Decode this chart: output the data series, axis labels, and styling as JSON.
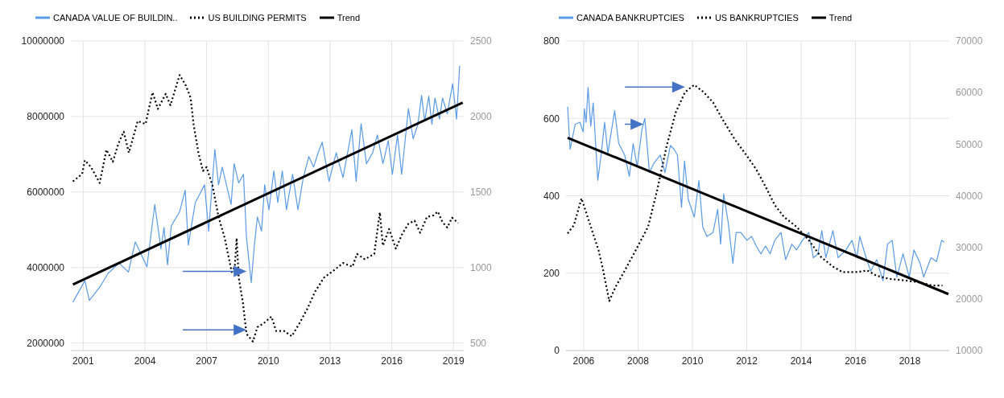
{
  "chart_data": [
    {
      "type": "line",
      "xlim": [
        2000.4,
        2019.5
      ],
      "xticks": [
        2001,
        2004,
        2007,
        2010,
        2013,
        2016,
        2019
      ],
      "ylim": [
        1800000,
        10000000
      ],
      "yticks": [
        2000000,
        4000000,
        6000000,
        8000000,
        10000000
      ],
      "y2lim": [
        450,
        2500
      ],
      "y2ticks": [
        500,
        1000,
        1500,
        2000,
        2500
      ],
      "grid": true,
      "legend": "top left",
      "series": [
        {
          "name": "CANADA VALUE OF BUILDIN..",
          "color": "#5a9be6",
          "line_style": "solid",
          "x": [
            2000.5,
            2001.08,
            2001.3,
            2001.83,
            2002.2,
            2002.74,
            2003.2,
            2003.53,
            2004.1,
            2004.48,
            2004.78,
            2004.93,
            2005.1,
            2005.28,
            2005.69,
            2005.96,
            2006.11,
            2006.45,
            2006.9,
            2007.1,
            2007.4,
            2007.58,
            2007.76,
            2008.19,
            2008.34,
            2008.56,
            2008.79,
            2008.94,
            2009.17,
            2009.32,
            2009.47,
            2009.67,
            2009.82,
            2010.03,
            2010.27,
            2010.46,
            2010.68,
            2010.88,
            2011.18,
            2011.44,
            2011.7,
            2011.97,
            2012.2,
            2012.42,
            2012.62,
            2012.95,
            2013.3,
            2013.63,
            2014.06,
            2014.27,
            2014.51,
            2014.77,
            2015.07,
            2015.3,
            2015.57,
            2015.83,
            2016.03,
            2016.28,
            2016.48,
            2016.81,
            2017.04,
            2017.27,
            2017.45,
            2017.6,
            2017.8,
            2017.95,
            2018.1,
            2018.32,
            2018.47,
            2018.7,
            2018.96,
            2019.15,
            2019.3
          ],
          "values": [
            3080000,
            3650000,
            3130000,
            3500000,
            3840000,
            4120000,
            3880000,
            4680000,
            4020000,
            5670000,
            4490000,
            5060000,
            4070000,
            5100000,
            5480000,
            6050000,
            4590000,
            5720000,
            6190000,
            4960000,
            7130000,
            6190000,
            6660000,
            5670000,
            6750000,
            6240000,
            6470000,
            4780000,
            3600000,
            4590000,
            5340000,
            4960000,
            6190000,
            5530000,
            6560000,
            5720000,
            6560000,
            5530000,
            6470000,
            5530000,
            6380000,
            6940000,
            6660000,
            7040000,
            7320000,
            6280000,
            7040000,
            6380000,
            7650000,
            6280000,
            7810000,
            6750000,
            7040000,
            7510000,
            6750000,
            7360000,
            6470000,
            7510000,
            6470000,
            8210000,
            7410000,
            7790000,
            8560000,
            7880000,
            8540000,
            7790000,
            8490000,
            7930000,
            8490000,
            8070000,
            8870000,
            7930000,
            9340000
          ]
        },
        {
          "name": "US BUILDING PERMITS",
          "color": "#000000",
          "line_style": "dotted",
          "axis": "y2",
          "x": [
            2000.5,
            2000.95,
            2001.08,
            2001.38,
            2001.8,
            2002.13,
            2002.44,
            2002.71,
            2002.97,
            2003.22,
            2003.65,
            2004.03,
            2004.37,
            2004.63,
            2005.01,
            2005.24,
            2005.69,
            2005.99,
            2006.22,
            2006.37,
            2006.6,
            2006.82,
            2007.0,
            2007.28,
            2007.58,
            2007.88,
            2008.22,
            2008.37,
            2008.46,
            2008.56,
            2008.76,
            2008.94,
            2009.25,
            2009.47,
            2009.77,
            2010.15,
            2010.38,
            2010.76,
            2011.14,
            2011.51,
            2011.89,
            2012.27,
            2012.72,
            2013.18,
            2013.63,
            2014.09,
            2014.31,
            2014.69,
            2015.15,
            2015.42,
            2015.57,
            2015.87,
            2016.2,
            2016.5,
            2016.81,
            2017.11,
            2017.38,
            2017.71,
            2018.02,
            2018.24,
            2018.47,
            2018.7,
            2018.93,
            2019.23
          ],
          "values": [
            1570,
            1620,
            1710,
            1665,
            1560,
            1780,
            1700,
            1820,
            1900,
            1760,
            1970,
            1950,
            2160,
            2050,
            2150,
            2075,
            2275,
            2205,
            2125,
            1945,
            1760,
            1640,
            1665,
            1545,
            1335,
            1195,
            970,
            1005,
            1195,
            935,
            770,
            560,
            510,
            605,
            630,
            675,
            580,
            580,
            545,
            630,
            725,
            840,
            935,
            980,
            1030,
            1005,
            1090,
            1055,
            1090,
            1365,
            1145,
            1255,
            1125,
            1220,
            1290,
            1310,
            1230,
            1335,
            1345,
            1370,
            1300,
            1265,
            1330,
            1295
          ]
        },
        {
          "name": "Trend",
          "color": "#000000",
          "line_style": "solid",
          "x": [
            2000.5,
            2019.45
          ],
          "values": [
            3550000,
            8370000
          ]
        }
      ]
    },
    {
      "type": "line",
      "xlim": [
        2005.35,
        2019.45
      ],
      "xticks": [
        2006,
        2008,
        2010,
        2012,
        2014,
        2016,
        2018
      ],
      "ylim": [
        0,
        800
      ],
      "yticks": [
        0,
        200,
        400,
        600,
        800
      ],
      "y2lim": [
        10000,
        70000
      ],
      "y2ticks": [
        10000,
        20000,
        30000,
        40000,
        50000,
        60000,
        70000
      ],
      "grid": true,
      "legend": "top left",
      "series": [
        {
          "name": "CANADA BANKRUPTCIES",
          "color": "#5a9be6",
          "line_style": "solid",
          "x": [
            2005.41,
            2005.5,
            2005.69,
            2005.86,
            2005.98,
            2006.03,
            2006.09,
            2006.16,
            2006.26,
            2006.35,
            2006.52,
            2006.64,
            2006.77,
            2006.89,
            2007.14,
            2007.29,
            2007.51,
            2007.68,
            2007.82,
            2007.97,
            2008.14,
            2008.25,
            2008.42,
            2008.59,
            2008.82,
            2008.99,
            2009.19,
            2009.33,
            2009.45,
            2009.6,
            2009.71,
            2009.85,
            2010.07,
            2010.24,
            2010.38,
            2010.53,
            2010.76,
            2010.93,
            2011.04,
            2011.15,
            2011.32,
            2011.49,
            2011.61,
            2011.78,
            2012.01,
            2012.18,
            2012.35,
            2012.52,
            2012.69,
            2012.86,
            2013.03,
            2013.26,
            2013.43,
            2013.66,
            2013.83,
            2014.05,
            2014.28,
            2014.45,
            2014.62,
            2014.76,
            2014.91,
            2015.17,
            2015.36,
            2015.65,
            2015.87,
            2016.05,
            2016.16,
            2016.39,
            2016.56,
            2016.78,
            2017.01,
            2017.18,
            2017.35,
            2017.52,
            2017.75,
            2017.98,
            2018.15,
            2018.38,
            2018.51,
            2018.78,
            2018.98,
            2019.17,
            2019.26
          ],
          "values": [
            630,
            520,
            585,
            590,
            565,
            625,
            590,
            680,
            580,
            640,
            440,
            505,
            590,
            510,
            620,
            535,
            505,
            450,
            535,
            475,
            570,
            600,
            460,
            485,
            505,
            460,
            530,
            520,
            505,
            370,
            490,
            390,
            345,
            440,
            320,
            295,
            305,
            365,
            275,
            405,
            330,
            225,
            305,
            305,
            285,
            295,
            270,
            250,
            270,
            250,
            285,
            305,
            235,
            275,
            260,
            285,
            305,
            240,
            250,
            310,
            240,
            310,
            240,
            260,
            285,
            240,
            295,
            240,
            205,
            235,
            180,
            275,
            285,
            190,
            250,
            190,
            260,
            225,
            190,
            240,
            230,
            285,
            280
          ]
        },
        {
          "name": "US BANKRUPTCIES",
          "color": "#000000",
          "line_style": "dotted",
          "axis": "y2",
          "x": [
            2005.41,
            2005.64,
            2005.92,
            2006.2,
            2006.55,
            2006.72,
            2006.94,
            2007.17,
            2007.51,
            2007.91,
            2008.37,
            2008.71,
            2009.05,
            2009.39,
            2009.73,
            2010.07,
            2010.41,
            2010.76,
            2011.1,
            2011.55,
            2012.01,
            2012.35,
            2012.69,
            2013.03,
            2013.37,
            2013.83,
            2014.28,
            2014.74,
            2015.19,
            2015.53,
            2015.99,
            2016.44,
            2016.78,
            2017.24,
            2017.81,
            2018.38,
            2018.83,
            2019.2
          ],
          "values": [
            32700,
            34300,
            39500,
            35000,
            29400,
            25500,
            19600,
            22300,
            25500,
            29400,
            34000,
            41200,
            49600,
            56200,
            60100,
            61500,
            60100,
            58100,
            54900,
            51000,
            47700,
            45100,
            41800,
            38200,
            35900,
            34000,
            31400,
            28100,
            26200,
            25200,
            25200,
            25500,
            24500,
            23900,
            23600,
            23200,
            22600,
            22600
          ]
        },
        {
          "name": "Trend",
          "color": "#000000",
          "line_style": "solid",
          "x": [
            2005.41,
            2019.42
          ],
          "values": [
            550,
            146
          ]
        }
      ]
    }
  ]
}
